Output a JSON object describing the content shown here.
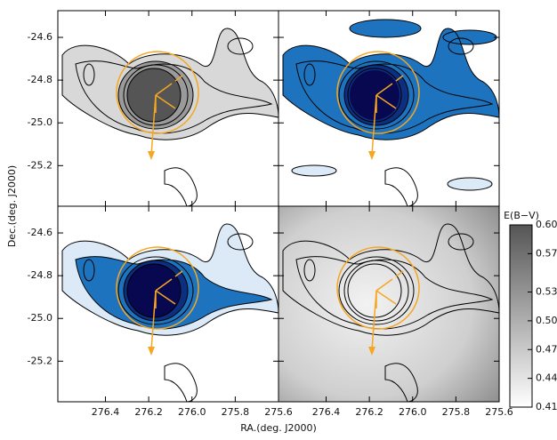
{
  "chart_data": {
    "type": "contour",
    "xlabel": "RA.(deg. J2000)",
    "ylabel": "Dec.(deg. J2000)",
    "xlim": [
      276.62,
      275.6
    ],
    "xticks": [
      276.4,
      276.2,
      {
        "value": 276,
        "label": "276.0"
      },
      275.8,
      275.6
    ],
    "ylim": [
      -25.39,
      -24.475
    ],
    "yticks": [
      -24.6,
      -24.8,
      {
        "value": -25,
        "label": "-25.0"
      },
      -25.2
    ],
    "colorbar": {
      "title": "E(B−V)",
      "lim": [
        0.41,
        0.6
      ],
      "ticks": [
        0.41,
        0.44,
        0.47,
        {
          "value": 0.5,
          "label": "0.50"
        },
        0.53,
        0.57,
        {
          "value": 0.6,
          "label": "0.60"
        }
      ]
    }
  }
}
